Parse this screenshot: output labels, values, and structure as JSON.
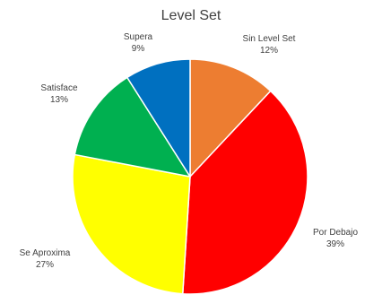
{
  "chart_data": {
    "type": "pie",
    "title": "Level Set",
    "start_angle_deg": 0,
    "direction": "clockwise",
    "slices": [
      {
        "label": "Sin Level Set",
        "value": 12,
        "value_label": "12%",
        "color": "#ED7D31"
      },
      {
        "label": "Por Debajo",
        "value": 39,
        "value_label": "39%",
        "color": "#FF0000"
      },
      {
        "label": "Se Aproxima",
        "value": 27,
        "value_label": "27%",
        "color": "#FFFF00"
      },
      {
        "label": "Satisface",
        "value": 13,
        "value_label": "13%",
        "color": "#00B050"
      },
      {
        "label": "Supera",
        "value": 9,
        "value_label": "9%",
        "color": "#0070C0"
      }
    ]
  }
}
